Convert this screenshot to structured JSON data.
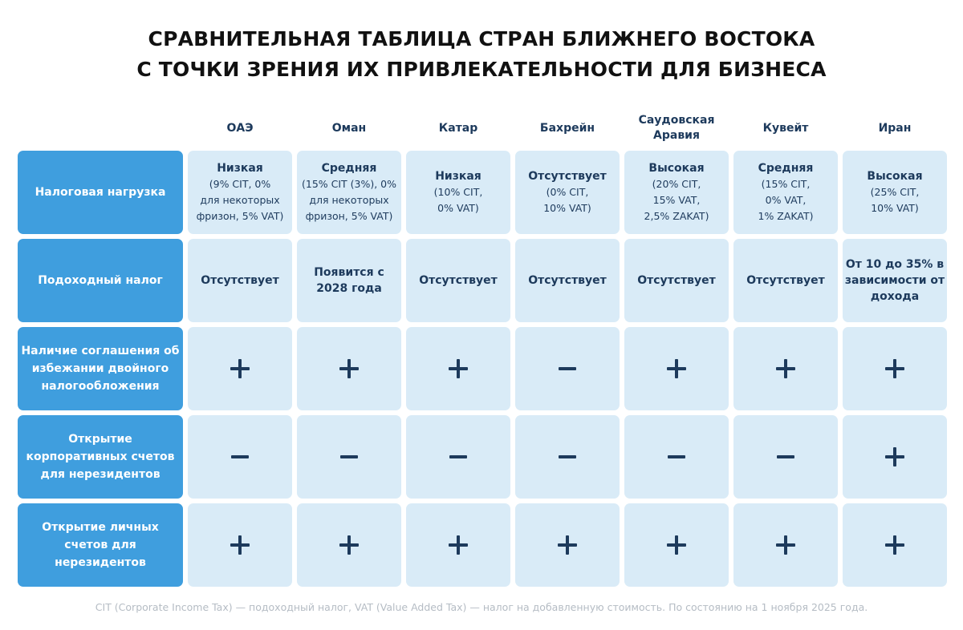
{
  "title": {
    "line1": "СРАВНИТЕЛЬНАЯ ТАБЛИЦА СТРАН БЛИЖНЕГО ВОСТОКА",
    "line2": "С ТОЧКИ ЗРЕНИЯ ИХ ПРИВЛЕКАТЕЛЬНОСТИ ДЛЯ БИЗНЕСА"
  },
  "columns": [
    "ОАЭ",
    "Оман",
    "Катар",
    "Бахрейн",
    "Саудовская Аравия",
    "Кувейт",
    "Иран"
  ],
  "rows": [
    {
      "label": "Налоговая нагрузка",
      "cells": [
        {
          "main": "Низкая",
          "sub": "(9% CIT,  0%\nдля некоторых\nфризон, 5% VAT)"
        },
        {
          "main": "Средняя",
          "sub": "(15% CIT (3%), 0%\nдля некоторых\nфризон, 5% VAT)"
        },
        {
          "main": "Низкая",
          "sub": "(10% CIT,\n0% VAT)"
        },
        {
          "main": "Отсутствует",
          "sub": "(0% CIT,\n10% VAT)"
        },
        {
          "main": "Высокая",
          "sub": "(20% CIT,\n15% VAT,\n2,5% ZAKAT)"
        },
        {
          "main": "Средняя",
          "sub": "(15% CIT,\n0% VAT,\n1% ZAKAT)"
        },
        {
          "main": "Высокая",
          "sub": "(25% CIT,\n10% VAT)"
        }
      ]
    },
    {
      "label": "Подоходный налог",
      "cells": [
        {
          "main": "Отсутствует"
        },
        {
          "main": "Появится с 2028 года"
        },
        {
          "main": "Отсутствует"
        },
        {
          "main": "Отсутствует"
        },
        {
          "main": "Отсутствует"
        },
        {
          "main": "Отсутствует"
        },
        {
          "main": "От 10 до 35% в зависимости от дохода"
        }
      ]
    },
    {
      "label": "Наличие соглашения об избежании двойного налогообложения",
      "marks": [
        "plus",
        "plus",
        "plus",
        "minus",
        "plus",
        "plus",
        "plus"
      ]
    },
    {
      "label": "Открытие корпоративных счетов для нерезидентов",
      "marks": [
        "minus",
        "minus",
        "minus",
        "minus",
        "minus",
        "minus",
        "plus"
      ]
    },
    {
      "label": "Открытие личных счетов для нерезидентов",
      "marks": [
        "plus",
        "plus",
        "plus",
        "plus",
        "plus",
        "plus",
        "plus"
      ]
    }
  ],
  "footnote": "CIT (Corporate Income Tax) — подоходный налог, VAT (Value Added Tax) — налог на добавленную стоимость. По состоянию на 1 ноября 2025 года.",
  "colors": {
    "label_bg": "#3f9ede",
    "cell_bg": "#d9ebf7",
    "text": "#1d3a5c"
  }
}
